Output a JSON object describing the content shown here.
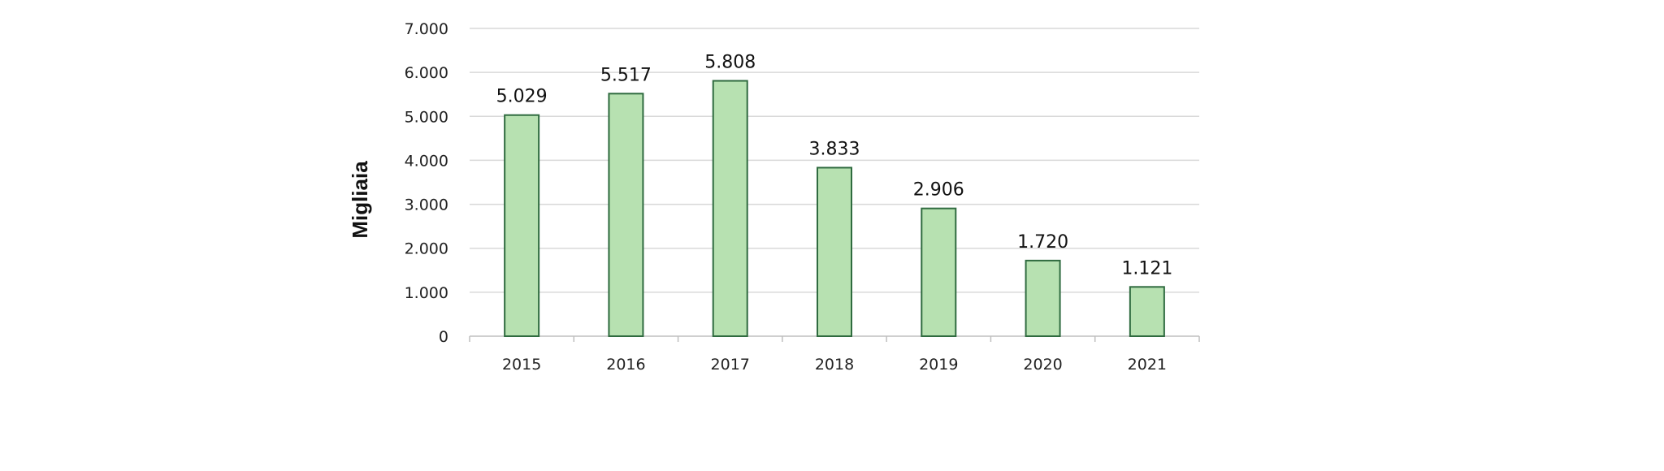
{
  "chart_data": {
    "type": "bar",
    "title": "",
    "xlabel": "",
    "ylabel": "Migliaia",
    "categories": [
      "2015",
      "2016",
      "2017",
      "2018",
      "2019",
      "2020",
      "2021"
    ],
    "values": [
      5029,
      5517,
      5808,
      3833,
      2906,
      1720,
      1121
    ],
    "value_labels": [
      "5.029",
      "5.517",
      "5.808",
      "3.833",
      "2.906",
      "1.720",
      "1.121"
    ],
    "ylim": [
      0,
      7000
    ],
    "yticks": [
      0,
      1000,
      2000,
      3000,
      4000,
      5000,
      6000,
      7000
    ],
    "ytick_labels": [
      "0",
      "1.000",
      "2.000",
      "3.000",
      "4.000",
      "5.000",
      "6.000",
      "7.000"
    ],
    "grid": true,
    "legend": "none",
    "colors": {
      "bar_fill": "#b7e1b1",
      "bar_stroke": "#2f6b3f",
      "grid": "#d9d9d9"
    }
  }
}
